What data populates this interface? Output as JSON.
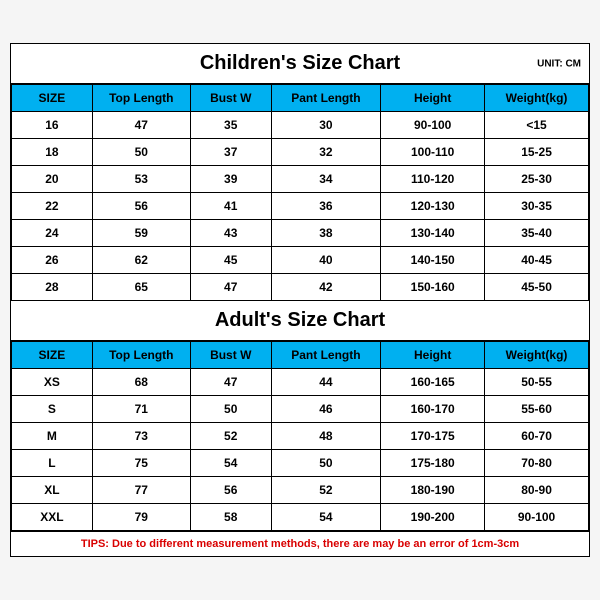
{
  "unit_label": "UNIT: CM",
  "header_bg": "#00b0f0",
  "children": {
    "title": "Children's Size Chart",
    "columns": [
      "SIZE",
      "Top Length",
      "Bust W",
      "Pant Length",
      "Height",
      "Weight(kg)"
    ],
    "rows": [
      [
        "16",
        "47",
        "35",
        "30",
        "90-100",
        "<15"
      ],
      [
        "18",
        "50",
        "37",
        "32",
        "100-110",
        "15-25"
      ],
      [
        "20",
        "53",
        "39",
        "34",
        "110-120",
        "25-30"
      ],
      [
        "22",
        "56",
        "41",
        "36",
        "120-130",
        "30-35"
      ],
      [
        "24",
        "59",
        "43",
        "38",
        "130-140",
        "35-40"
      ],
      [
        "26",
        "62",
        "45",
        "40",
        "140-150",
        "40-45"
      ],
      [
        "28",
        "65",
        "47",
        "42",
        "150-160",
        "45-50"
      ]
    ]
  },
  "adult": {
    "title": "Adult's Size Chart",
    "columns": [
      "SIZE",
      "Top Length",
      "Bust W",
      "Pant Length",
      "Height",
      "Weight(kg)"
    ],
    "rows": [
      [
        "XS",
        "68",
        "47",
        "44",
        "160-165",
        "50-55"
      ],
      [
        "S",
        "71",
        "50",
        "46",
        "160-170",
        "55-60"
      ],
      [
        "M",
        "73",
        "52",
        "48",
        "170-175",
        "60-70"
      ],
      [
        "L",
        "75",
        "54",
        "50",
        "175-180",
        "70-80"
      ],
      [
        "XL",
        "77",
        "56",
        "52",
        "180-190",
        "80-90"
      ],
      [
        "XXL",
        "79",
        "58",
        "54",
        "190-200",
        "90-100"
      ]
    ]
  },
  "footer": "TIPS: Due to different measurement methods, there are may be an error of 1cm-3cm"
}
